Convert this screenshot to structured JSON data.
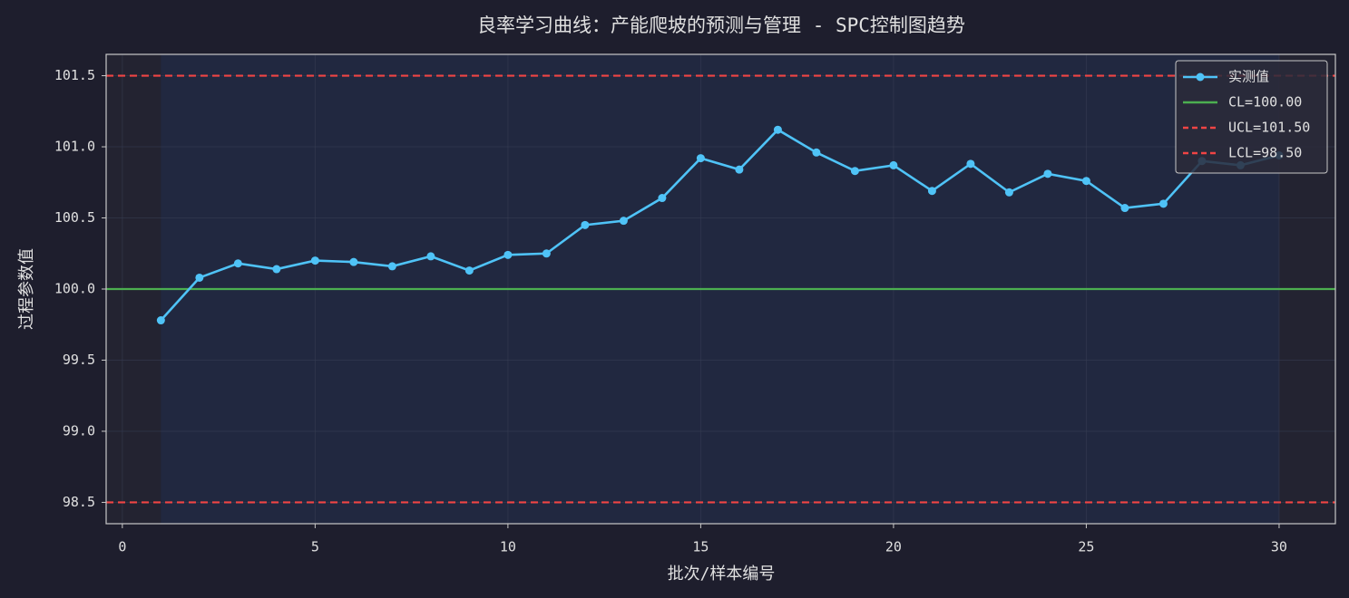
{
  "chart_data": {
    "type": "line",
    "title": "良率学习曲线：产能爬坡的预测与管理 - SPC控制图趋势",
    "x_label": "批次/样本编号",
    "y_label": "过程参数值",
    "x": [
      1,
      2,
      3,
      4,
      5,
      6,
      7,
      8,
      9,
      10,
      11,
      12,
      13,
      14,
      15,
      16,
      17,
      18,
      19,
      20,
      21,
      22,
      23,
      24,
      25,
      26,
      27,
      28,
      29,
      30
    ],
    "series": [
      {
        "name": "实测值",
        "color": "#4fc3f7",
        "values": [
          99.78,
          100.08,
          100.18,
          100.14,
          100.2,
          100.19,
          100.16,
          100.23,
          100.13,
          100.24,
          100.25,
          100.45,
          100.48,
          100.64,
          100.92,
          100.84,
          101.12,
          100.96,
          100.83,
          100.87,
          100.69,
          100.88,
          100.68,
          100.81,
          100.76,
          100.57,
          100.6,
          100.9,
          100.87,
          100.94
        ]
      }
    ],
    "reference_lines": [
      {
        "name": "CL=100.00",
        "value": 100,
        "color": "#4caf50",
        "style": "solid"
      },
      {
        "name": "UCL=101.50",
        "value": 101.5,
        "color": "#f04444",
        "style": "dashed"
      },
      {
        "name": "LCL=98.50",
        "value": 98.5,
        "color": "#f04444",
        "style": "dashed"
      }
    ],
    "shaded_span": [
      1,
      30
    ],
    "xlim": [
      -0.42,
      31.46
    ],
    "ylim": [
      98.35,
      101.65
    ],
    "xticks": [
      0,
      5,
      10,
      15,
      20,
      25,
      30
    ],
    "yticks": [
      98.5,
      {
        "value": 99,
        "label": "99.0"
      },
      99.5,
      {
        "value": 100,
        "label": "100.0"
      },
      100.5,
      {
        "value": 101,
        "label": "101.0"
      },
      101.5
    ],
    "grid": true,
    "legend": "upper right"
  }
}
